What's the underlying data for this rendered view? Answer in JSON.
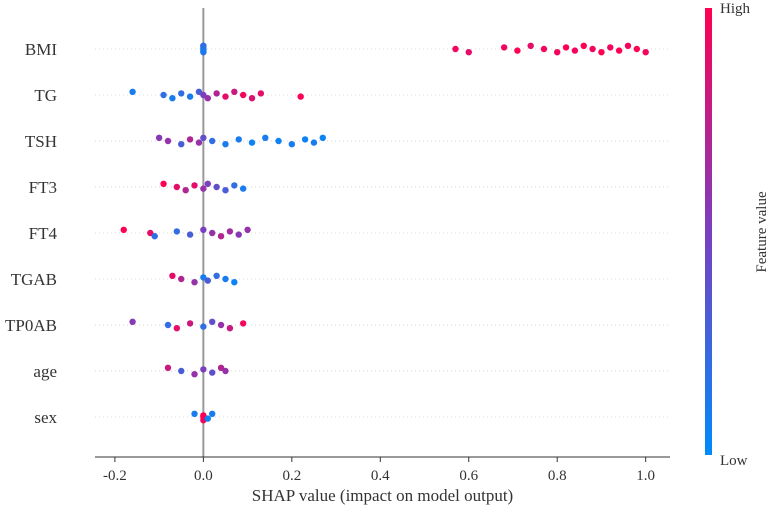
{
  "chart_data": {
    "type": "scatter",
    "subtype": "shap-beeswarm",
    "xlabel": "SHAP value (impact on model output)",
    "xlim": [
      -0.245,
      1.055
    ],
    "xticks": [
      -0.2,
      0.0,
      0.2,
      0.4,
      0.6,
      0.8,
      1.0
    ],
    "xtick_labels": [
      "-0.2",
      "0.0",
      "0.2",
      "0.4",
      "0.6",
      "0.8",
      "1.0"
    ],
    "colorbar": {
      "title": "Feature value",
      "high_label": "High",
      "low_label": "Low",
      "low_color": "#008bfb",
      "high_color": "#ff0052",
      "mid_color": "#7a3fbf"
    },
    "features": [
      {
        "name": "BMI",
        "points": [
          [
            0.0,
            0.1
          ],
          [
            0.0,
            0.05
          ],
          [
            0.0,
            0.15
          ],
          [
            0.0,
            0.0
          ],
          [
            0.0,
            0.1
          ],
          [
            0.0,
            0.2
          ],
          [
            0.57,
            0.95
          ],
          [
            0.6,
            0.9
          ],
          [
            0.68,
            0.95
          ],
          [
            0.71,
            1.0
          ],
          [
            0.74,
            0.9
          ],
          [
            0.77,
            0.95
          ],
          [
            0.8,
            0.95
          ],
          [
            0.82,
            1.0
          ],
          [
            0.84,
            0.95
          ],
          [
            0.86,
            1.0
          ],
          [
            0.88,
            0.95
          ],
          [
            0.9,
            1.0
          ],
          [
            0.92,
            0.95
          ],
          [
            0.94,
            1.0
          ],
          [
            0.96,
            0.95
          ],
          [
            0.98,
            1.0
          ],
          [
            1.0,
            0.95
          ]
        ]
      },
      {
        "name": "TG",
        "points": [
          [
            -0.16,
            0.1
          ],
          [
            -0.09,
            0.2
          ],
          [
            -0.07,
            0.1
          ],
          [
            -0.05,
            0.2
          ],
          [
            -0.03,
            0.1
          ],
          [
            -0.01,
            0.3
          ],
          [
            0.0,
            0.5
          ],
          [
            0.01,
            0.6
          ],
          [
            0.03,
            0.7
          ],
          [
            0.05,
            0.9
          ],
          [
            0.07,
            0.8
          ],
          [
            0.09,
            0.95
          ],
          [
            0.11,
            0.85
          ],
          [
            0.13,
            0.9
          ],
          [
            0.22,
            1.0
          ]
        ]
      },
      {
        "name": "TSH",
        "points": [
          [
            -0.1,
            0.55
          ],
          [
            -0.08,
            0.6
          ],
          [
            -0.05,
            0.3
          ],
          [
            -0.03,
            0.7
          ],
          [
            -0.01,
            0.6
          ],
          [
            0.0,
            0.4
          ],
          [
            0.02,
            0.2
          ],
          [
            0.05,
            0.1
          ],
          [
            0.08,
            0.1
          ],
          [
            0.11,
            0.05
          ],
          [
            0.14,
            0.1
          ],
          [
            0.17,
            0.05
          ],
          [
            0.2,
            0.1
          ],
          [
            0.23,
            0.05
          ],
          [
            0.25,
            0.1
          ],
          [
            0.27,
            0.05
          ]
        ]
      },
      {
        "name": "FT3",
        "points": [
          [
            -0.09,
            1.0
          ],
          [
            -0.06,
            0.9
          ],
          [
            -0.04,
            0.7
          ],
          [
            -0.02,
            0.9
          ],
          [
            0.0,
            0.6
          ],
          [
            0.01,
            0.5
          ],
          [
            0.03,
            0.4
          ],
          [
            0.05,
            0.3
          ],
          [
            0.07,
            0.2
          ],
          [
            0.09,
            0.1
          ]
        ]
      },
      {
        "name": "FT4",
        "points": [
          [
            -0.18,
            1.0
          ],
          [
            -0.12,
            0.9
          ],
          [
            -0.11,
            0.2
          ],
          [
            -0.06,
            0.2
          ],
          [
            -0.03,
            0.3
          ],
          [
            0.0,
            0.5
          ],
          [
            0.02,
            0.6
          ],
          [
            0.04,
            0.7
          ],
          [
            0.06,
            0.65
          ],
          [
            0.08,
            0.55
          ],
          [
            0.1,
            0.6
          ]
        ]
      },
      {
        "name": "TGAB",
        "points": [
          [
            -0.07,
            0.9
          ],
          [
            -0.05,
            0.7
          ],
          [
            -0.02,
            0.6
          ],
          [
            0.0,
            0.1
          ],
          [
            0.01,
            0.3
          ],
          [
            0.03,
            0.2
          ],
          [
            0.05,
            0.1
          ],
          [
            0.07,
            0.05
          ]
        ]
      },
      {
        "name": "TP0AB",
        "points": [
          [
            -0.16,
            0.55
          ],
          [
            -0.08,
            0.2
          ],
          [
            -0.06,
            0.9
          ],
          [
            -0.03,
            0.8
          ],
          [
            0.0,
            0.2
          ],
          [
            0.02,
            0.4
          ],
          [
            0.04,
            0.6
          ],
          [
            0.06,
            0.8
          ],
          [
            0.09,
            0.95
          ]
        ]
      },
      {
        "name": "age",
        "points": [
          [
            -0.08,
            0.8
          ],
          [
            -0.05,
            0.3
          ],
          [
            -0.02,
            0.6
          ],
          [
            0.0,
            0.5
          ],
          [
            0.02,
            0.4
          ],
          [
            0.04,
            0.7
          ],
          [
            0.05,
            0.6
          ]
        ]
      },
      {
        "name": "sex",
        "points": [
          [
            -0.02,
            0.1
          ],
          [
            0.0,
            0.9
          ],
          [
            0.0,
            0.95
          ],
          [
            0.0,
            1.0
          ],
          [
            0.01,
            0.05
          ],
          [
            0.02,
            0.1
          ]
        ]
      }
    ]
  }
}
